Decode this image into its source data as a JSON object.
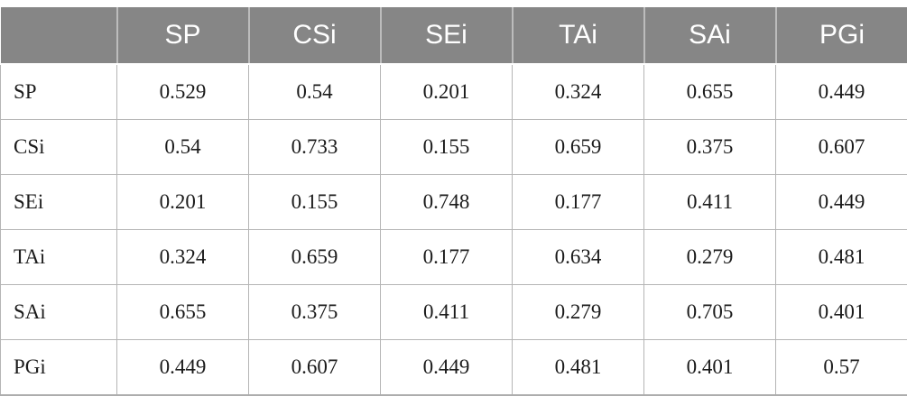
{
  "table": {
    "corner_label": "",
    "column_headers": [
      "SP",
      "CSi",
      "SEi",
      "TAi",
      "SAi",
      "PGi"
    ],
    "rows": [
      {
        "label": "SP",
        "values": [
          "0.529",
          "0.54",
          "0.201",
          "0.324",
          "0.655",
          "0.449"
        ]
      },
      {
        "label": "CSi",
        "values": [
          "0.54",
          "0.733",
          "0.155",
          "0.659",
          "0.375",
          "0.607"
        ]
      },
      {
        "label": "SEi",
        "values": [
          "0.201",
          "0.155",
          "0.748",
          "0.177",
          "0.411",
          "0.449"
        ]
      },
      {
        "label": "TAi",
        "values": [
          "0.324",
          "0.659",
          "0.177",
          "0.634",
          "0.279",
          "0.481"
        ]
      },
      {
        "label": "SAi",
        "values": [
          "0.655",
          "0.375",
          "0.411",
          "0.279",
          "0.705",
          "0.401"
        ]
      },
      {
        "label": "PGi",
        "values": [
          "0.449",
          "0.607",
          "0.449",
          "0.481",
          "0.401",
          "0.57"
        ]
      }
    ]
  },
  "chart_data": {
    "type": "table",
    "title": "",
    "categories": [
      "SP",
      "CSi",
      "SEi",
      "TAi",
      "SAi",
      "PGi"
    ],
    "matrix": [
      [
        0.529,
        0.54,
        0.201,
        0.324,
        0.655,
        0.449
      ],
      [
        0.54,
        0.733,
        0.155,
        0.659,
        0.375,
        0.607
      ],
      [
        0.201,
        0.155,
        0.748,
        0.177,
        0.411,
        0.449
      ],
      [
        0.324,
        0.659,
        0.177,
        0.634,
        0.279,
        0.481
      ],
      [
        0.655,
        0.375,
        0.411,
        0.279,
        0.705,
        0.401
      ],
      [
        0.449,
        0.607,
        0.449,
        0.481,
        0.401,
        0.57
      ]
    ]
  },
  "colors": {
    "header_bg": "#868686",
    "header_text": "#ffffff",
    "cell_border": "#b5b5b5",
    "body_text": "#1b1b1b"
  }
}
